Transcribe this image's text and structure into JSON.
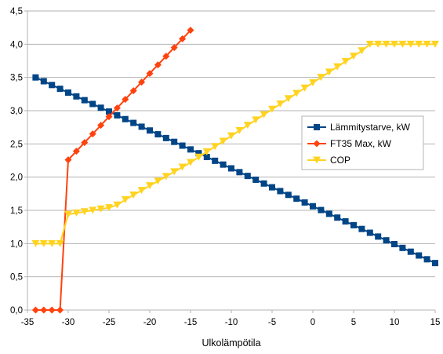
{
  "chart_data": {
    "type": "line",
    "xlabel": "Ulkolämpötila",
    "ylabel": "",
    "xlim": [
      -35,
      15
    ],
    "ylim": [
      0,
      4.5
    ],
    "x_ticks": [
      "-35",
      "-30",
      "-25",
      "-20",
      "-15",
      "-10",
      "-5",
      "0",
      "5",
      "10",
      "15"
    ],
    "y_ticks": [
      "0,0",
      "0,5",
      "1,0",
      "1,5",
      "2,0",
      "2,5",
      "3,0",
      "3,5",
      "4,0",
      "4,5"
    ],
    "grid": "horizontal",
    "legend_position": "right",
    "series": [
      {
        "name": "Lämmitystarve, kW",
        "color": "#004586",
        "marker": "square",
        "x": [
          -34,
          -33,
          -32,
          -31,
          -30,
          -29,
          -28,
          -27,
          -26,
          -25,
          -24,
          -23,
          -22,
          -21,
          -20,
          -19,
          -18,
          -17,
          -16,
          -15,
          -14,
          -13,
          -12,
          -11,
          -10,
          -9,
          -8,
          -7,
          -6,
          -5,
          -4,
          -3,
          -2,
          -1,
          0,
          1,
          2,
          3,
          4,
          5,
          6,
          7,
          8,
          9,
          10,
          11,
          12,
          13,
          14,
          15
        ],
        "y": [
          3.5,
          3.443,
          3.386,
          3.329,
          3.272,
          3.215,
          3.158,
          3.101,
          3.044,
          2.987,
          2.93,
          2.873,
          2.816,
          2.759,
          2.702,
          2.645,
          2.588,
          2.531,
          2.474,
          2.417,
          2.36,
          2.303,
          2.246,
          2.189,
          2.132,
          2.075,
          2.018,
          1.961,
          1.904,
          1.847,
          1.79,
          1.733,
          1.676,
          1.619,
          1.562,
          1.505,
          1.448,
          1.391,
          1.334,
          1.277,
          1.22,
          1.163,
          1.106,
          1.049,
          0.992,
          0.935,
          0.878,
          0.821,
          0.764,
          0.707
        ]
      },
      {
        "name": "FT35 Max, kW",
        "color": "#ff420e",
        "marker": "diamond",
        "x": [
          -34,
          -33,
          -32,
          -31,
          -30,
          -29,
          -28,
          -27,
          -26,
          -25,
          -24,
          -23,
          -22,
          -21,
          -20,
          -19,
          -18,
          -17,
          -16,
          -15
        ],
        "y": [
          0,
          0,
          0,
          0,
          2.26,
          2.39,
          2.52,
          2.65,
          2.78,
          2.91,
          3.04,
          3.17,
          3.3,
          3.43,
          3.56,
          3.69,
          3.82,
          3.95,
          4.08,
          4.21
        ]
      },
      {
        "name": "COP",
        "color": "#ffd320",
        "marker": "triangle-down",
        "x": [
          -34,
          -33,
          -32,
          -31,
          -30,
          -29,
          -28,
          -27,
          -26,
          -25,
          -24,
          -23,
          -22,
          -21,
          -20,
          -19,
          -18,
          -17,
          -16,
          -15,
          -14,
          -13,
          -12,
          -11,
          -10,
          -9,
          -8,
          -7,
          -6,
          -5,
          -4,
          -3,
          -2,
          -1,
          0,
          1,
          2,
          3,
          4,
          5,
          6,
          7,
          8,
          9,
          10,
          11,
          12,
          13,
          14,
          15
        ],
        "y": [
          1,
          1,
          1,
          1,
          1.44,
          1.46,
          1.48,
          1.5,
          1.52,
          1.54,
          1.58,
          1.66,
          1.73,
          1.8,
          1.87,
          1.94,
          2.01,
          2.08,
          2.15,
          2.22,
          2.3,
          2.38,
          2.46,
          2.54,
          2.62,
          2.7,
          2.78,
          2.86,
          2.94,
          3.02,
          3.1,
          3.18,
          3.26,
          3.34,
          3.42,
          3.5,
          3.58,
          3.66,
          3.74,
          3.82,
          3.9,
          4,
          4,
          4,
          4,
          4,
          4,
          4,
          4,
          4
        ]
      }
    ]
  }
}
